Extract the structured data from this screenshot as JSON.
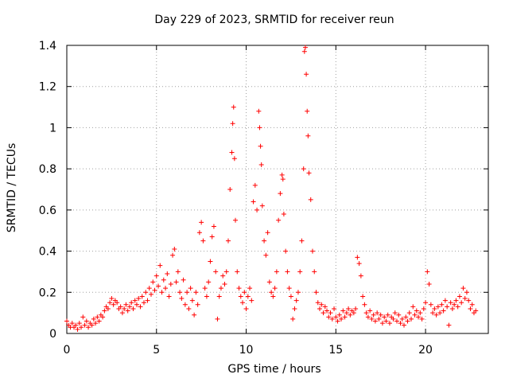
{
  "chart_data": {
    "type": "scatter",
    "title": "Day 229 of 2023, SRMTID for receiver reun",
    "xlabel": "GPS time / hours",
    "ylabel": "SRMTID / TECUs",
    "xlim": [
      0,
      23.5
    ],
    "ylim": [
      0,
      1.4
    ],
    "xticks": [
      0,
      5,
      10,
      15,
      20
    ],
    "yticks": [
      0,
      0.2,
      0.4,
      0.6,
      0.8,
      1,
      1.2,
      1.4
    ],
    "xtick_labels": [
      "0",
      "5",
      "10",
      "15",
      "20"
    ],
    "ytick_labels": [
      "0",
      "0.2",
      "0.4",
      "0.6",
      "0.8",
      "1",
      "1.2",
      "1.4"
    ],
    "grid": true,
    "marker": "+",
    "color": "#ff0000",
    "series": [
      {
        "name": "SRMTID",
        "points": [
          [
            0.0,
            0.06
          ],
          [
            0.1,
            0.04
          ],
          [
            0.2,
            0.03
          ],
          [
            0.3,
            0.05
          ],
          [
            0.4,
            0.03
          ],
          [
            0.5,
            0.04
          ],
          [
            0.6,
            0.02
          ],
          [
            0.7,
            0.05
          ],
          [
            0.8,
            0.03
          ],
          [
            0.9,
            0.08
          ],
          [
            1.0,
            0.04
          ],
          [
            1.1,
            0.06
          ],
          [
            1.2,
            0.03
          ],
          [
            1.3,
            0.05
          ],
          [
            1.4,
            0.04
          ],
          [
            1.5,
            0.07
          ],
          [
            1.6,
            0.05
          ],
          [
            1.7,
            0.08
          ],
          [
            1.8,
            0.06
          ],
          [
            1.9,
            0.09
          ],
          [
            2.0,
            0.08
          ],
          [
            2.1,
            0.11
          ],
          [
            2.2,
            0.13
          ],
          [
            2.3,
            0.12
          ],
          [
            2.4,
            0.15
          ],
          [
            2.5,
            0.17
          ],
          [
            2.6,
            0.14
          ],
          [
            2.7,
            0.16
          ],
          [
            2.8,
            0.15
          ],
          [
            2.9,
            0.12
          ],
          [
            3.0,
            0.13
          ],
          [
            3.1,
            0.1
          ],
          [
            3.2,
            0.12
          ],
          [
            3.3,
            0.14
          ],
          [
            3.4,
            0.11
          ],
          [
            3.5,
            0.13
          ],
          [
            3.6,
            0.15
          ],
          [
            3.7,
            0.12
          ],
          [
            3.8,
            0.16
          ],
          [
            3.9,
            0.14
          ],
          [
            4.0,
            0.17
          ],
          [
            4.1,
            0.13
          ],
          [
            4.2,
            0.18
          ],
          [
            4.3,
            0.15
          ],
          [
            4.4,
            0.2
          ],
          [
            4.5,
            0.16
          ],
          [
            4.6,
            0.22
          ],
          [
            4.7,
            0.19
          ],
          [
            4.8,
            0.25
          ],
          [
            4.9,
            0.21
          ],
          [
            5.0,
            0.28
          ],
          [
            5.1,
            0.23
          ],
          [
            5.2,
            0.33
          ],
          [
            5.3,
            0.2
          ],
          [
            5.4,
            0.26
          ],
          [
            5.5,
            0.22
          ],
          [
            5.6,
            0.29
          ],
          [
            5.7,
            0.18
          ],
          [
            5.8,
            0.24
          ],
          [
            5.9,
            0.38
          ],
          [
            6.0,
            0.41
          ],
          [
            6.1,
            0.25
          ],
          [
            6.2,
            0.3
          ],
          [
            6.3,
            0.2
          ],
          [
            6.4,
            0.17
          ],
          [
            6.5,
            0.26
          ],
          [
            6.6,
            0.14
          ],
          [
            6.7,
            0.2
          ],
          [
            6.8,
            0.12
          ],
          [
            6.9,
            0.22
          ],
          [
            7.0,
            0.16
          ],
          [
            7.1,
            0.09
          ],
          [
            7.2,
            0.2
          ],
          [
            7.3,
            0.14
          ],
          [
            7.4,
            0.49
          ],
          [
            7.5,
            0.54
          ],
          [
            7.6,
            0.45
          ],
          [
            7.7,
            0.22
          ],
          [
            7.8,
            0.18
          ],
          [
            7.9,
            0.25
          ],
          [
            8.0,
            0.35
          ],
          [
            8.1,
            0.47
          ],
          [
            8.2,
            0.52
          ],
          [
            8.3,
            0.3
          ],
          [
            8.4,
            0.07
          ],
          [
            8.5,
            0.18
          ],
          [
            8.6,
            0.22
          ],
          [
            8.7,
            0.28
          ],
          [
            8.8,
            0.24
          ],
          [
            8.9,
            0.3
          ],
          [
            9.0,
            0.45
          ],
          [
            9.1,
            0.7
          ],
          [
            9.2,
            0.88
          ],
          [
            9.25,
            1.02
          ],
          [
            9.3,
            1.1
          ],
          [
            9.35,
            0.85
          ],
          [
            9.4,
            0.55
          ],
          [
            9.5,
            0.3
          ],
          [
            9.6,
            0.22
          ],
          [
            9.7,
            0.18
          ],
          [
            9.8,
            0.15
          ],
          [
            9.9,
            0.2
          ],
          [
            10.0,
            0.12
          ],
          [
            10.1,
            0.18
          ],
          [
            10.2,
            0.22
          ],
          [
            10.3,
            0.16
          ],
          [
            10.4,
            0.64
          ],
          [
            10.5,
            0.72
          ],
          [
            10.6,
            0.6
          ],
          [
            10.7,
            1.08
          ],
          [
            10.75,
            1.0
          ],
          [
            10.8,
            0.91
          ],
          [
            10.85,
            0.82
          ],
          [
            10.9,
            0.62
          ],
          [
            11.0,
            0.45
          ],
          [
            11.1,
            0.38
          ],
          [
            11.2,
            0.49
          ],
          [
            11.3,
            0.25
          ],
          [
            11.4,
            0.2
          ],
          [
            11.5,
            0.18
          ],
          [
            11.6,
            0.22
          ],
          [
            11.7,
            0.3
          ],
          [
            11.8,
            0.55
          ],
          [
            11.9,
            0.68
          ],
          [
            12.0,
            0.77
          ],
          [
            12.05,
            0.75
          ],
          [
            12.1,
            0.58
          ],
          [
            12.2,
            0.4
          ],
          [
            12.3,
            0.3
          ],
          [
            12.4,
            0.22
          ],
          [
            12.5,
            0.18
          ],
          [
            12.6,
            0.07
          ],
          [
            12.7,
            0.12
          ],
          [
            12.8,
            0.16
          ],
          [
            12.9,
            0.2
          ],
          [
            13.0,
            0.3
          ],
          [
            13.1,
            0.45
          ],
          [
            13.2,
            0.8
          ],
          [
            13.25,
            1.37
          ],
          [
            13.3,
            1.39
          ],
          [
            13.35,
            1.26
          ],
          [
            13.4,
            1.08
          ],
          [
            13.45,
            0.96
          ],
          [
            13.5,
            0.78
          ],
          [
            13.6,
            0.65
          ],
          [
            13.7,
            0.4
          ],
          [
            13.8,
            0.3
          ],
          [
            13.9,
            0.2
          ],
          [
            14.0,
            0.15
          ],
          [
            14.1,
            0.12
          ],
          [
            14.2,
            0.14
          ],
          [
            14.3,
            0.1
          ],
          [
            14.4,
            0.13
          ],
          [
            14.5,
            0.11
          ],
          [
            14.6,
            0.08
          ],
          [
            14.7,
            0.1
          ],
          [
            14.8,
            0.07
          ],
          [
            14.9,
            0.12
          ],
          [
            15.0,
            0.08
          ],
          [
            15.1,
            0.06
          ],
          [
            15.2,
            0.09
          ],
          [
            15.3,
            0.07
          ],
          [
            15.4,
            0.11
          ],
          [
            15.5,
            0.08
          ],
          [
            15.6,
            0.1
          ],
          [
            15.7,
            0.12
          ],
          [
            15.8,
            0.09
          ],
          [
            15.9,
            0.11
          ],
          [
            16.0,
            0.1
          ],
          [
            16.1,
            0.12
          ],
          [
            16.2,
            0.37
          ],
          [
            16.3,
            0.34
          ],
          [
            16.4,
            0.28
          ],
          [
            16.5,
            0.18
          ],
          [
            16.6,
            0.14
          ],
          [
            16.7,
            0.1
          ],
          [
            16.8,
            0.08
          ],
          [
            16.9,
            0.11
          ],
          [
            17.0,
            0.07
          ],
          [
            17.1,
            0.09
          ],
          [
            17.2,
            0.06
          ],
          [
            17.3,
            0.1
          ],
          [
            17.4,
            0.07
          ],
          [
            17.5,
            0.09
          ],
          [
            17.6,
            0.05
          ],
          [
            17.7,
            0.08
          ],
          [
            17.8,
            0.06
          ],
          [
            17.9,
            0.09
          ],
          [
            18.0,
            0.05
          ],
          [
            18.1,
            0.08
          ],
          [
            18.2,
            0.07
          ],
          [
            18.3,
            0.1
          ],
          [
            18.4,
            0.06
          ],
          [
            18.5,
            0.09
          ],
          [
            18.6,
            0.05
          ],
          [
            18.7,
            0.07
          ],
          [
            18.8,
            0.04
          ],
          [
            18.9,
            0.08
          ],
          [
            19.0,
            0.06
          ],
          [
            19.1,
            0.1
          ],
          [
            19.2,
            0.07
          ],
          [
            19.3,
            0.13
          ],
          [
            19.4,
            0.09
          ],
          [
            19.5,
            0.11
          ],
          [
            19.6,
            0.08
          ],
          [
            19.7,
            0.1
          ],
          [
            19.8,
            0.07
          ],
          [
            19.9,
            0.12
          ],
          [
            20.0,
            0.15
          ],
          [
            20.1,
            0.3
          ],
          [
            20.2,
            0.24
          ],
          [
            20.3,
            0.14
          ],
          [
            20.4,
            0.1
          ],
          [
            20.5,
            0.12
          ],
          [
            20.6,
            0.09
          ],
          [
            20.7,
            0.13
          ],
          [
            20.8,
            0.1
          ],
          [
            20.9,
            0.14
          ],
          [
            21.0,
            0.11
          ],
          [
            21.1,
            0.16
          ],
          [
            21.2,
            0.13
          ],
          [
            21.3,
            0.04
          ],
          [
            21.4,
            0.15
          ],
          [
            21.5,
            0.12
          ],
          [
            21.6,
            0.14
          ],
          [
            21.7,
            0.16
          ],
          [
            21.8,
            0.13
          ],
          [
            21.9,
            0.18
          ],
          [
            22.0,
            0.15
          ],
          [
            22.1,
            0.22
          ],
          [
            22.2,
            0.17
          ],
          [
            22.3,
            0.2
          ],
          [
            22.4,
            0.16
          ],
          [
            22.5,
            0.12
          ],
          [
            22.6,
            0.14
          ],
          [
            22.7,
            0.1
          ],
          [
            22.8,
            0.11
          ]
        ]
      }
    ]
  }
}
